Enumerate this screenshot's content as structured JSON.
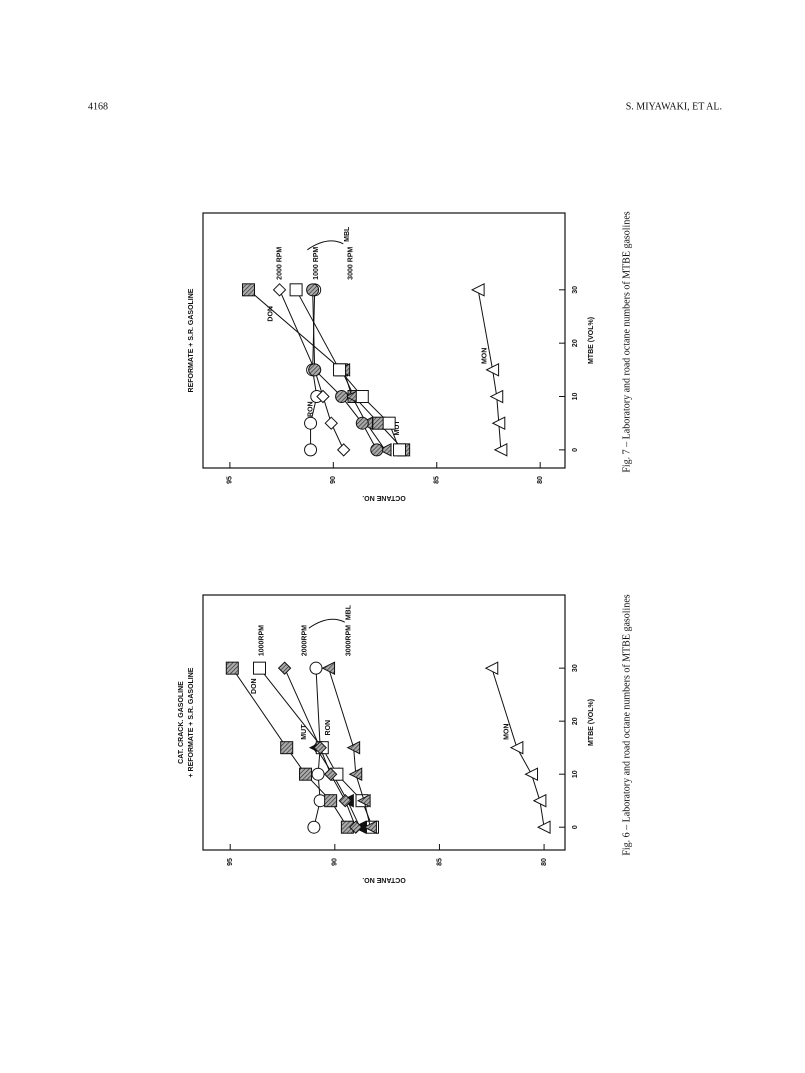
{
  "header": {
    "page_number": "4168",
    "authors": "S. MIYAWAKI, ET AL."
  },
  "captions": [
    "Fig. 7 – Laboratory and road octane numbers of MTBE gasolines",
    "Fig. 6 – Laboratory and road octane numbers of MTBE gasolines"
  ],
  "chart_data": [
    {
      "type": "line",
      "title": "REFORMATE + S.R. GASOLINE",
      "x_label": "MTBE (VOL%)",
      "y_label": "OCTANE NO.",
      "group_label": "MBL",
      "x": [
        0,
        5,
        10,
        15,
        30
      ],
      "xlim": [
        -3.4,
        44.4
      ],
      "xticks": [
        0,
        10,
        20,
        30
      ],
      "ylim": [
        78.8,
        96.3
      ],
      "yticks": [
        80,
        85,
        90,
        95
      ],
      "series": [
        {
          "name": "RON",
          "marker": "circle",
          "fill": "open",
          "values": [
            91.1,
            91.1,
            90.8,
            91.0,
            90.9
          ]
        },
        {
          "name": "MON",
          "marker": "triangle",
          "fill": "open",
          "values": [
            81.9,
            82.0,
            82.1,
            82.3,
            83.0
          ]
        },
        {
          "name": "DON",
          "marker": "square",
          "fill": "hatched",
          "values": [
            86.6,
            87.8,
            89.0,
            89.6,
            94.1
          ]
        },
        {
          "name": "MUT",
          "marker": "triangle",
          "fill": "hatched",
          "values": [
            87.5,
            88.4,
            89.1,
            89.5,
            null
          ]
        },
        {
          "name": "2000 RPM",
          "marker": "diamond",
          "fill": "open",
          "values": [
            89.5,
            90.1,
            90.5,
            90.9,
            92.6
          ]
        },
        {
          "name": "1000 RPM",
          "marker": "square",
          "fill": "open",
          "values": [
            86.8,
            87.3,
            88.6,
            89.7,
            91.8
          ]
        },
        {
          "name": "3000 RPM",
          "marker": "circle",
          "fill": "hatched",
          "values": [
            87.9,
            88.6,
            89.6,
            90.9,
            91.0
          ]
        }
      ]
    },
    {
      "type": "line",
      "title": "CAT. CRACK. GASOLINE",
      "subtitle": "+ REFORMATE + S.R. GASOLINE",
      "x_label": "MTBE (VOL%)",
      "y_label": "OCTANE NO.",
      "group_label": "MBL",
      "x": [
        0,
        5,
        10,
        15,
        30
      ],
      "xlim": [
        -4.3,
        43.8
      ],
      "xticks": [
        0,
        10,
        20,
        30
      ],
      "ylim": [
        79.0,
        96.3
      ],
      "yticks": [
        80,
        85,
        90,
        95
      ],
      "series": [
        {
          "name": "RON",
          "marker": "circle",
          "fill": "open",
          "values": [
            91.0,
            90.7,
            90.8,
            90.7,
            90.9
          ]
        },
        {
          "name": "MON",
          "marker": "triangle",
          "fill": "open",
          "values": [
            80.0,
            80.2,
            80.6,
            81.3,
            82.5
          ]
        },
        {
          "name": "DON",
          "marker": "square",
          "fill": "hatched",
          "values": [
            89.4,
            90.2,
            91.4,
            92.3,
            94.9
          ]
        },
        {
          "name": "MUT",
          "marker": "triangle",
          "fill": "black",
          "values": [
            88.8,
            89.4,
            90.1,
            90.9,
            null
          ]
        },
        {
          "name": "1000RPM",
          "marker": "square",
          "fill": "open",
          "values": [
            88.2,
            88.7,
            89.9,
            90.6,
            93.6
          ]
        },
        {
          "name": "2000RPM",
          "marker": "diamond",
          "fill": "hatched",
          "values": [
            89.0,
            89.5,
            90.2,
            90.7,
            92.4
          ]
        },
        {
          "name": "3000RPM",
          "marker": "triangle",
          "fill": "hatched",
          "values": [
            88.3,
            88.6,
            89.0,
            89.1,
            90.3
          ]
        }
      ]
    }
  ]
}
